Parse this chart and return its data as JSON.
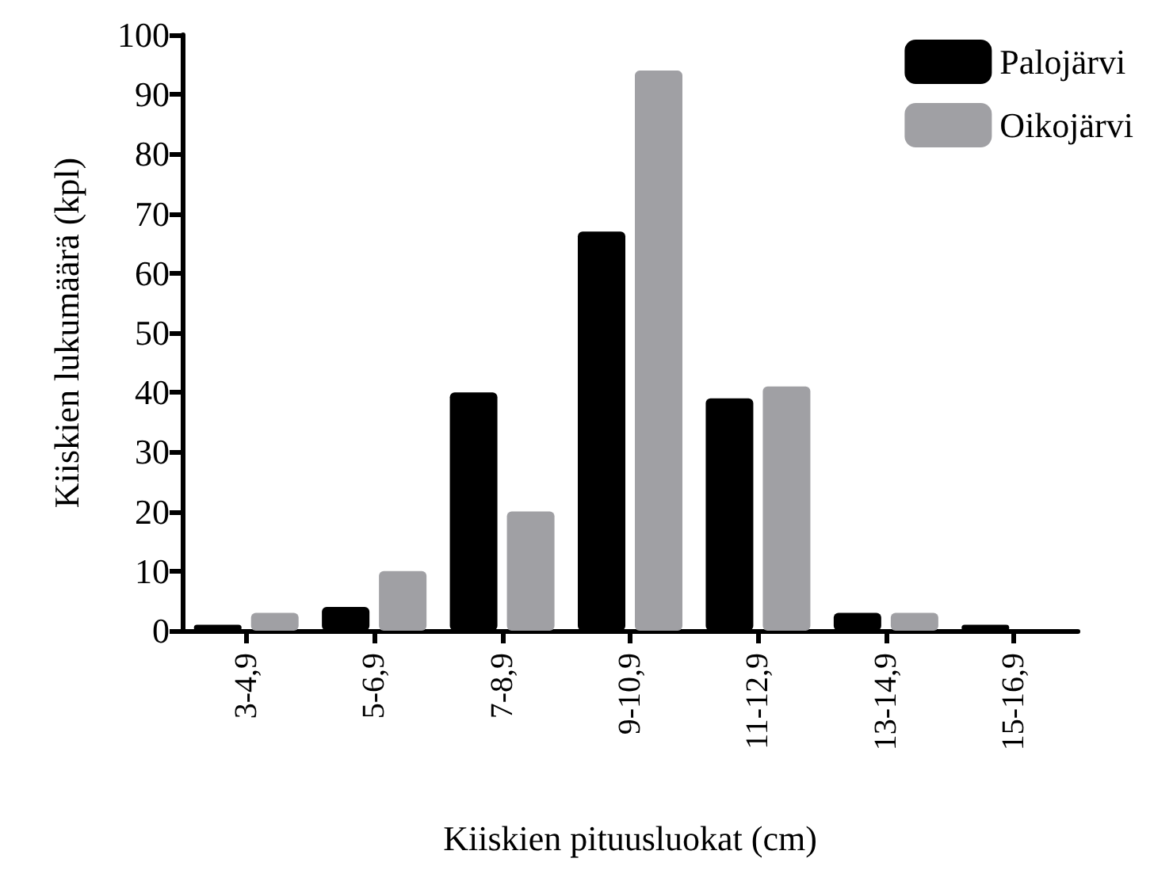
{
  "chart_data": {
    "type": "bar",
    "xlabel": "Kiiskien pituusluokat (cm)",
    "ylabel": "Kiiskien lukumäärä (kpl)",
    "categories": [
      "3-4,9",
      "5-6,9",
      "7-8,9",
      "9-10,9",
      "11-12,9",
      "13-14,9",
      "15-16,9"
    ],
    "series": [
      {
        "name": "Palojärvi",
        "color": "#000000",
        "values": [
          1,
          4,
          40,
          67,
          39,
          3,
          1
        ]
      },
      {
        "name": "Oikojärvi",
        "color": "#a0a0a4",
        "values": [
          3,
          10,
          20,
          94,
          41,
          3,
          0
        ]
      }
    ],
    "ylim": [
      0,
      100
    ],
    "yticks": [
      0,
      10,
      20,
      30,
      40,
      50,
      60,
      70,
      80,
      90,
      100
    ],
    "grid": false,
    "legend": "top right"
  }
}
